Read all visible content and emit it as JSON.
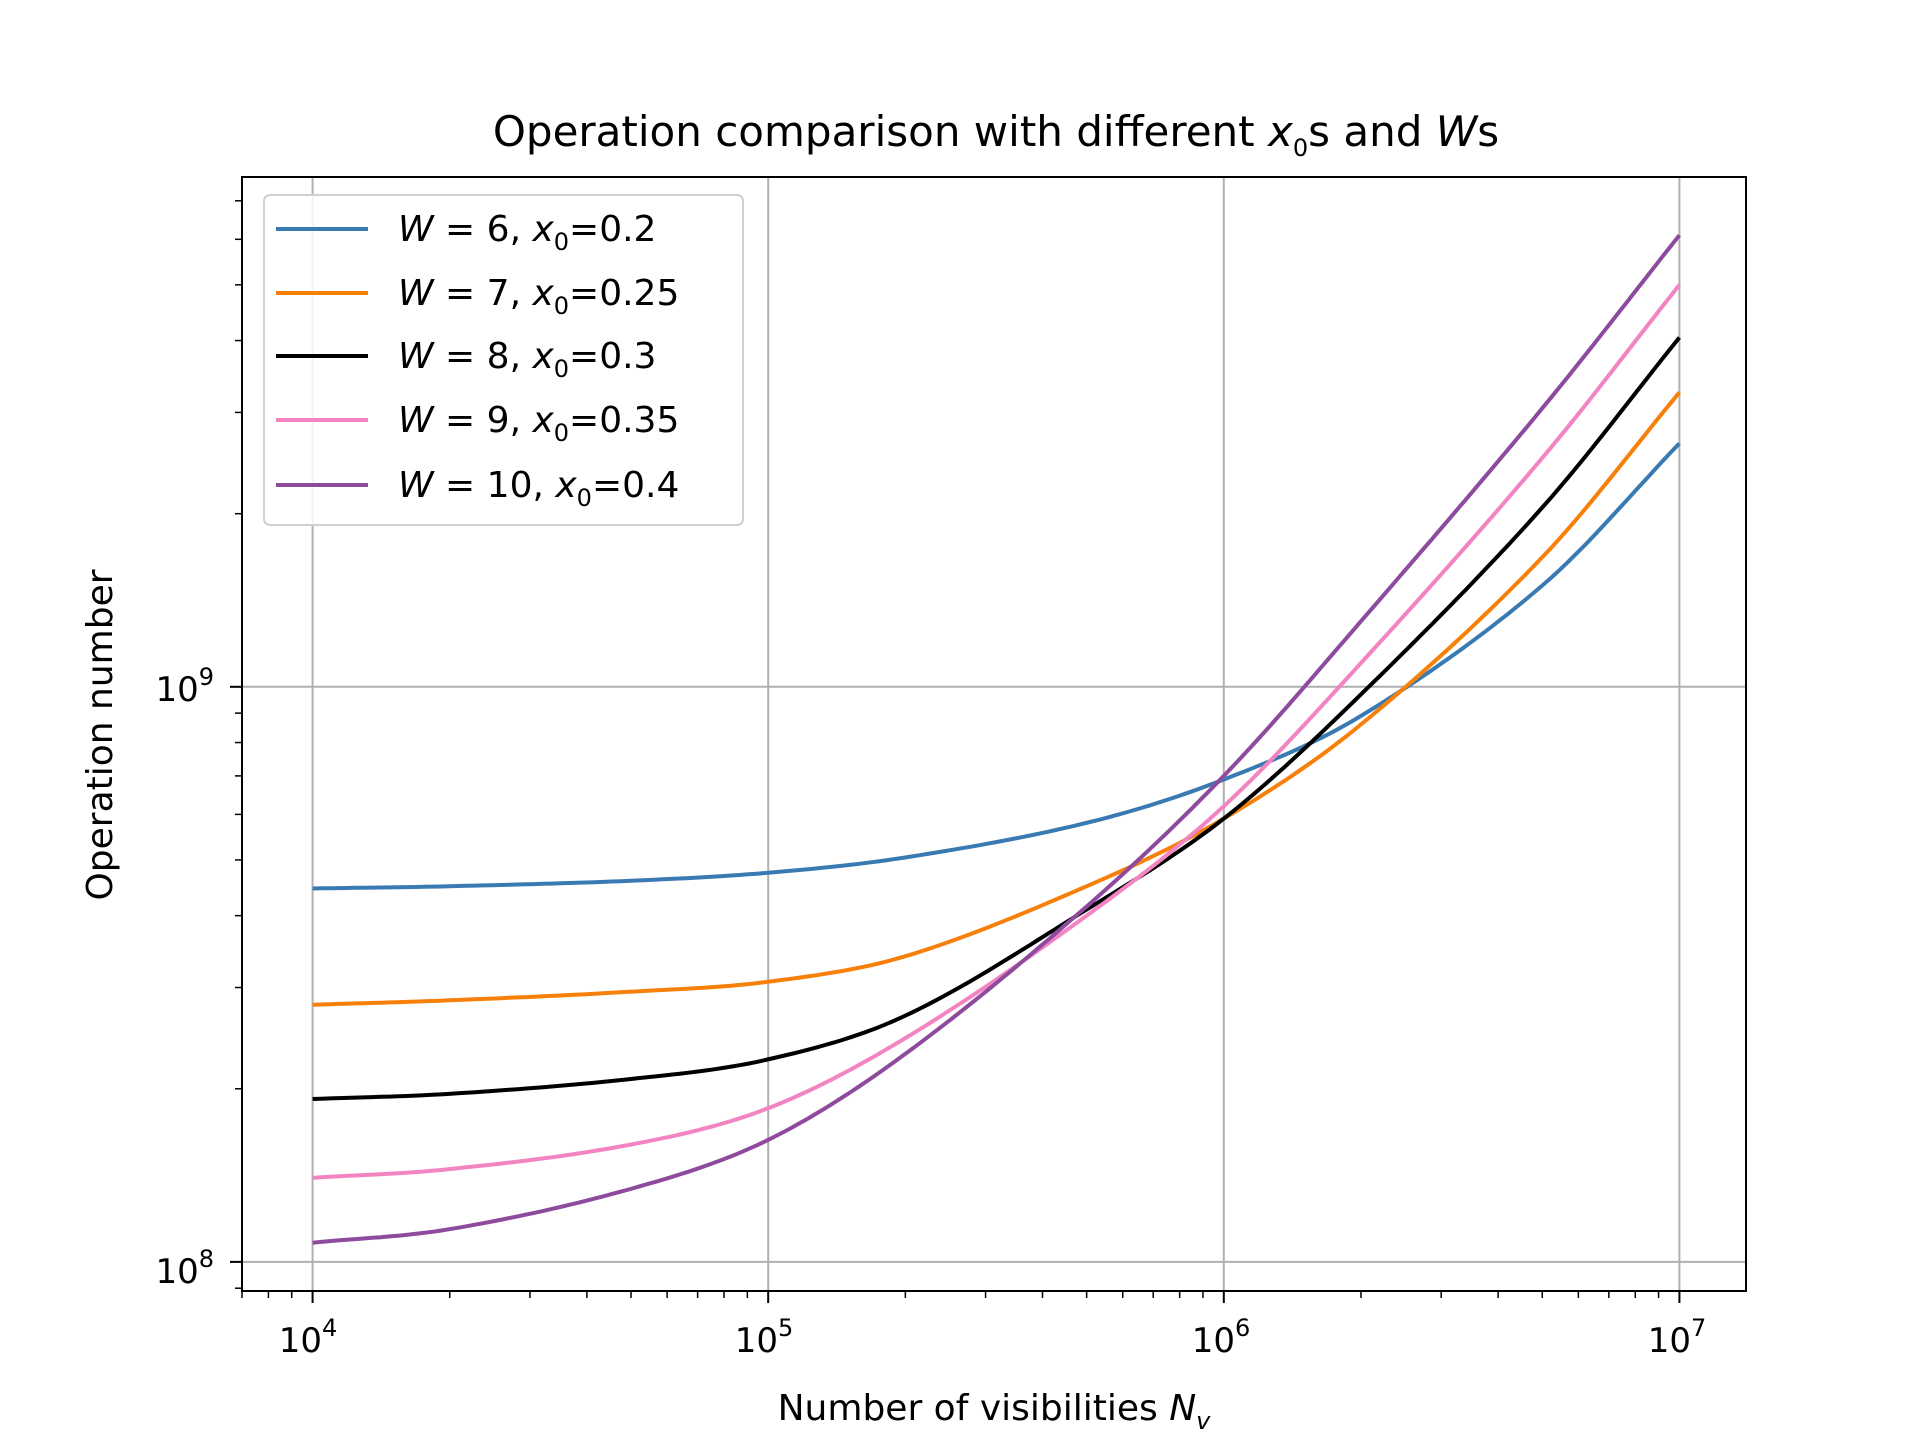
{
  "chart_data": {
    "type": "line",
    "title_parts": [
      "Operation comparison with different ",
      "x",
      "0",
      "s and ",
      "W",
      "s"
    ],
    "xlabel_parts": [
      "Number of visibilities ",
      "N",
      "v"
    ],
    "ylabel": "Operation number",
    "xscale": "log",
    "yscale": "log",
    "xlim": [
      7000,
      14000000
    ],
    "ylim": [
      89000000,
      7700000000
    ],
    "grid": true,
    "legend_position": "upper-left",
    "x_ticks": [
      {
        "value": 10000,
        "base": "10",
        "exp": "4"
      },
      {
        "value": 100000,
        "base": "10",
        "exp": "5"
      },
      {
        "value": 1000000,
        "base": "10",
        "exp": "6"
      },
      {
        "value": 10000000,
        "base": "10",
        "exp": "7"
      }
    ],
    "y_ticks": [
      {
        "value": 100000000,
        "base": "10",
        "exp": "8"
      },
      {
        "value": 1000000000,
        "base": "10",
        "exp": "9"
      }
    ],
    "x": [
      10000,
      20000,
      50000,
      100000,
      200000,
      500000,
      1000000,
      2000000,
      5000000,
      10000000
    ],
    "series": [
      {
        "name_parts": [
          "W",
          " = 6, ",
          "x",
          "0",
          "=0.2"
        ],
        "color": "#3a7ab3",
        "values": [
          446000000,
          450000000,
          460000000,
          475000000,
          505000000,
          580000000,
          690000000,
          890000000,
          1500000000,
          2650000000
        ]
      },
      {
        "name_parts": [
          "W",
          " = 7, ",
          "x",
          "0",
          "=0.25"
        ],
        "color": "#f7800a",
        "values": [
          280000000,
          285000000,
          295000000,
          307000000,
          340000000,
          450000000,
          590000000,
          860000000,
          1680000000,
          3250000000
        ]
      },
      {
        "name_parts": [
          "W",
          " = 8, ",
          "x",
          "0",
          "=0.3"
        ],
        "color": "#000000",
        "values": [
          192000000,
          196000000,
          208000000,
          225000000,
          268000000,
          410000000,
          590000000,
          970000000,
          2050000000,
          4050000000
        ]
      },
      {
        "name_parts": [
          "W",
          " = 9, ",
          "x",
          "0",
          "=0.35"
        ],
        "color": "#f384c2",
        "values": [
          140000000,
          145000000,
          160000000,
          185000000,
          245000000,
          400000000,
          620000000,
          1100000000,
          2500000000,
          5000000000
        ]
      },
      {
        "name_parts": [
          "W",
          " = 10, ",
          "x",
          "0",
          "=0.4"
        ],
        "color": "#8e4a9d",
        "values": [
          108000000,
          114000000,
          134000000,
          163000000,
          230000000,
          415000000,
          700000000,
          1300000000,
          3050000000,
          6100000000
        ]
      }
    ]
  }
}
